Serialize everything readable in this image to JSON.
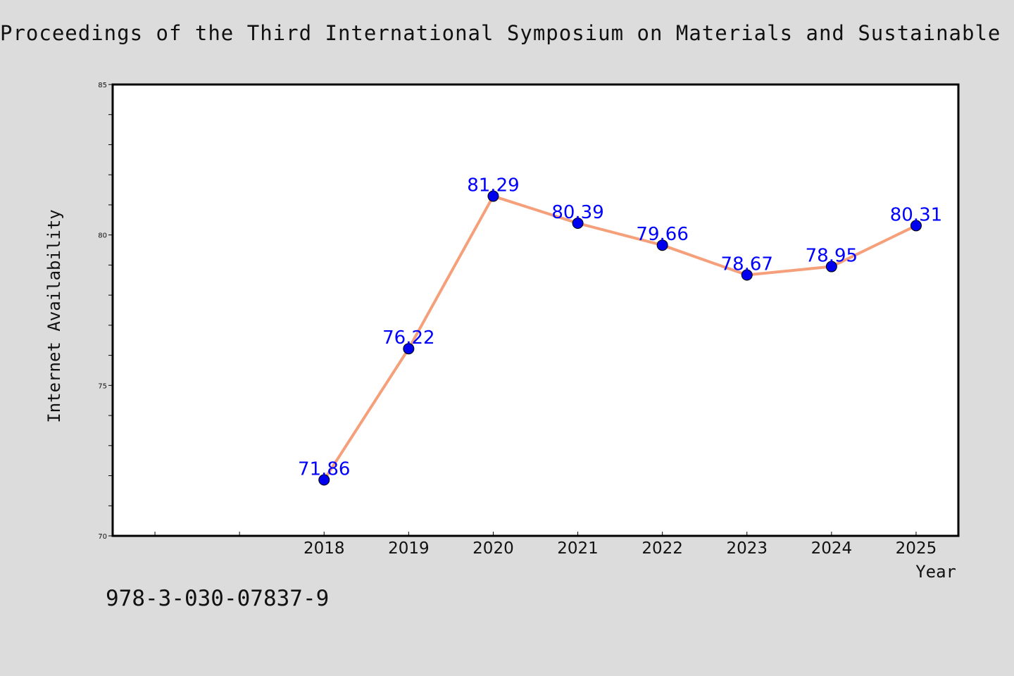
{
  "header": {
    "title": "Proceedings of the Third International Symposium on Materials and Sustainable De"
  },
  "footer": {
    "isbn": "978-3-030-07837-9"
  },
  "chart_data": {
    "type": "line",
    "title": "",
    "xlabel": "Year",
    "ylabel": "Internet Availability",
    "categories": [
      "2018",
      "2019",
      "2020",
      "2021",
      "2022",
      "2023",
      "2024",
      "2025"
    ],
    "x": [
      2018,
      2019,
      2020,
      2021,
      2022,
      2023,
      2024,
      2025
    ],
    "xlim": [
      2015.5,
      2025.5
    ],
    "series": [
      {
        "values": [
          71.86,
          76.22,
          81.29,
          80.39,
          79.66,
          78.67,
          78.95,
          80.31
        ],
        "line_color": "#f5a07a",
        "marker_color": "#0000ee"
      }
    ],
    "data_labels": [
      "71.86",
      "76.22",
      "81.29",
      "80.39",
      "79.66",
      "78.67",
      "78.95",
      "80.31"
    ],
    "ylim": [
      70,
      85
    ],
    "yticks": [
      "70",
      "75",
      "80",
      "85"
    ],
    "grid": false,
    "legend": "none",
    "colors": {
      "background": "#dcdcdc",
      "plot_background": "#ffffff",
      "label_color": "#0000ff"
    }
  }
}
